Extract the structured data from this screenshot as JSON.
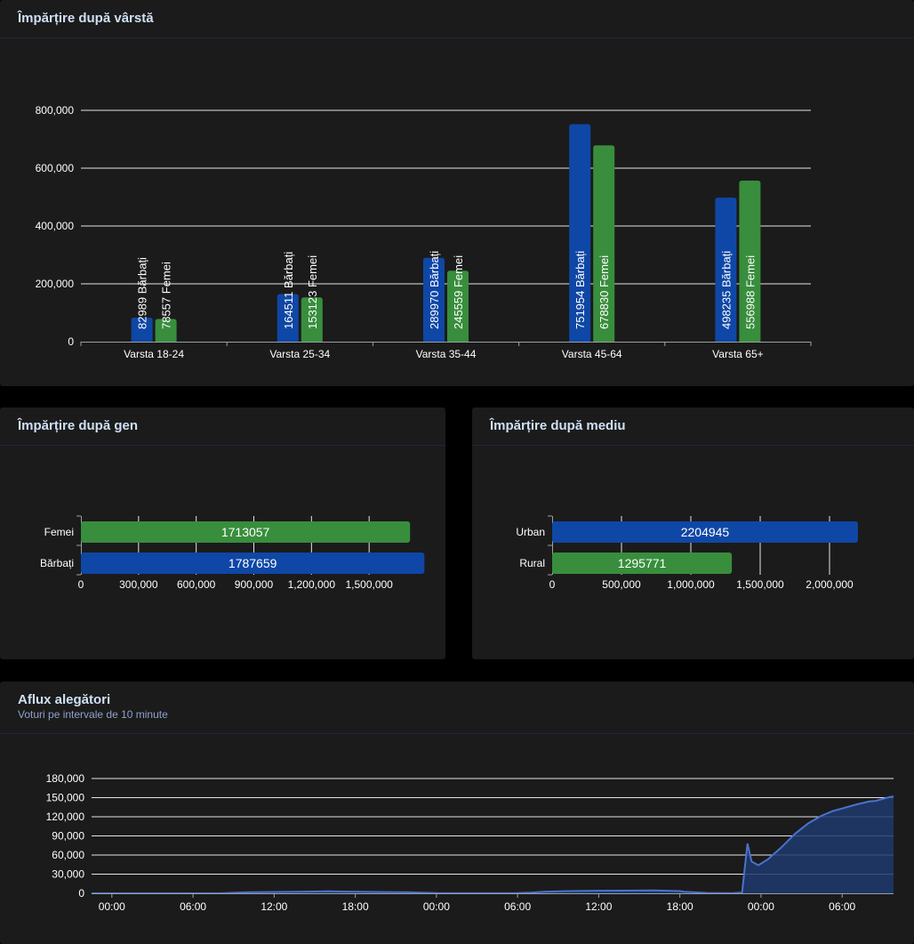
{
  "panels": {
    "age": {
      "title": "Împărțire după vârstă"
    },
    "gender": {
      "title": "Împărțire după gen"
    },
    "env": {
      "title": "Împărțire după mediu"
    },
    "turnout": {
      "title": "Aflux alegători",
      "subtitle": "Voturi pe intervale de 10 minute"
    }
  },
  "colors": {
    "blue": "#0f47a6",
    "green": "#388e3c",
    "line": "#4a72cc",
    "area": "#1f3a6e"
  },
  "chart_data": [
    {
      "id": "age",
      "type": "bar",
      "title": "Împărțire după vârstă",
      "categories": [
        "Varsta 18-24",
        "Varsta 25-34",
        "Varsta 35-44",
        "Varsta 45-64",
        "Varsta 65+"
      ],
      "series": [
        {
          "name": "Bărbați",
          "values": [
            82989,
            164511,
            289970,
            751954,
            498235
          ],
          "labels": [
            "82989 Bărbați",
            "164511 Bărbați",
            "289970 Bărbați",
            "751954 Bărbați",
            "498235 Bărbați"
          ]
        },
        {
          "name": "Femei",
          "values": [
            78557,
            153123,
            245559,
            678830,
            556988
          ],
          "labels": [
            "78557 Femei",
            "153123 Femei",
            "245559 Femei",
            "678830 Femei",
            "556988 Femei"
          ]
        }
      ],
      "ylim": [
        0,
        800000
      ],
      "yticks": [
        "0",
        "200,000",
        "400,000",
        "600,000",
        "800,000"
      ],
      "grid": true
    },
    {
      "id": "gender",
      "type": "bar",
      "orientation": "horizontal",
      "title": "Împărțire după gen",
      "categories": [
        "Femei",
        "Bărbați"
      ],
      "values": [
        1713057,
        1787659
      ],
      "labels": [
        "1713057",
        "1787659"
      ],
      "xlim": [
        0,
        1800000
      ],
      "xticks": [
        "0",
        "300,000",
        "600,000",
        "900,000",
        "1,200,000",
        "1,500,000"
      ],
      "grid": true
    },
    {
      "id": "env",
      "type": "bar",
      "orientation": "horizontal",
      "title": "Împărțire după mediu",
      "categories": [
        "Urban",
        "Rural"
      ],
      "values": [
        2204945,
        1295771
      ],
      "labels": [
        "2204945",
        "1295771"
      ],
      "xlim": [
        0,
        2250000
      ],
      "xticks": [
        "0",
        "500,000",
        "1,000,000",
        "1,500,000",
        "2,000,000"
      ],
      "grid": true
    },
    {
      "id": "turnout",
      "type": "area",
      "title": "Aflux alegători",
      "subtitle": "Voturi pe intervale de 10 minute",
      "x_unit": "hours",
      "x": [
        -1.5,
        8,
        10,
        14,
        16,
        18,
        20,
        22,
        23,
        24,
        26,
        28,
        30,
        31,
        32,
        34,
        36,
        38,
        40,
        42,
        42.3,
        44,
        45.5,
        46,
        46.6,
        47,
        47.3,
        47.8,
        48.5,
        49.5,
        50.5,
        51.5,
        52.5,
        53.3,
        54,
        55,
        56,
        56.5,
        57,
        57.5,
        57.8
      ],
      "y": [
        0,
        0,
        1500,
        2500,
        3000,
        2500,
        2000,
        1500,
        800,
        300,
        200,
        200,
        300,
        1000,
        2500,
        3500,
        4000,
        4200,
        4500,
        3500,
        2500,
        500,
        200,
        300,
        1000,
        78000,
        50000,
        44000,
        53000,
        72000,
        93000,
        110000,
        122000,
        129000,
        133000,
        139000,
        144000,
        145000,
        148000,
        151000,
        152000
      ],
      "xlim": [
        -1.5,
        57.8
      ],
      "xticks": [
        "00:00",
        "06:00",
        "12:00",
        "18:00",
        "00:00",
        "06:00",
        "12:00",
        "18:00",
        "00:00",
        "06:00"
      ],
      "xtick_values": [
        0,
        6,
        12,
        18,
        24,
        30,
        36,
        42,
        48,
        54
      ],
      "ylim": [
        0,
        180000
      ],
      "yticks": [
        "0",
        "30,000",
        "60,000",
        "90,000",
        "120,000",
        "150,000",
        "180,000"
      ],
      "grid": true
    }
  ]
}
